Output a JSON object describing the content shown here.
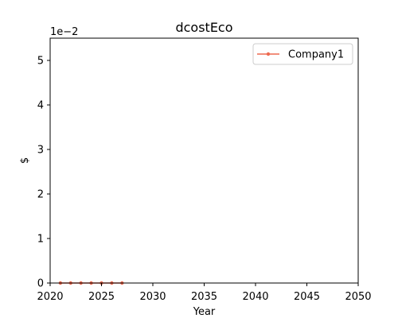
{
  "chart_data": {
    "type": "line",
    "title": "dcostEco",
    "xlabel": "Year",
    "ylabel": "$",
    "y_offset_label": "1e−2",
    "xlim": [
      2020,
      2050
    ],
    "ylim": [
      0,
      5.5
    ],
    "x_ticks": [
      2020,
      2025,
      2030,
      2035,
      2040,
      2045,
      2050
    ],
    "y_ticks": [
      0,
      1,
      2,
      3,
      4,
      5
    ],
    "grid": false,
    "legend_position": "top-right",
    "series": [
      {
        "name": "Company1",
        "color": "#ee6a50",
        "marker": "circle",
        "x": [
          2021,
          2022,
          2023,
          2024,
          2025,
          2026,
          2027
        ],
        "y": [
          0,
          0,
          0,
          0,
          0,
          0,
          0
        ]
      }
    ]
  }
}
